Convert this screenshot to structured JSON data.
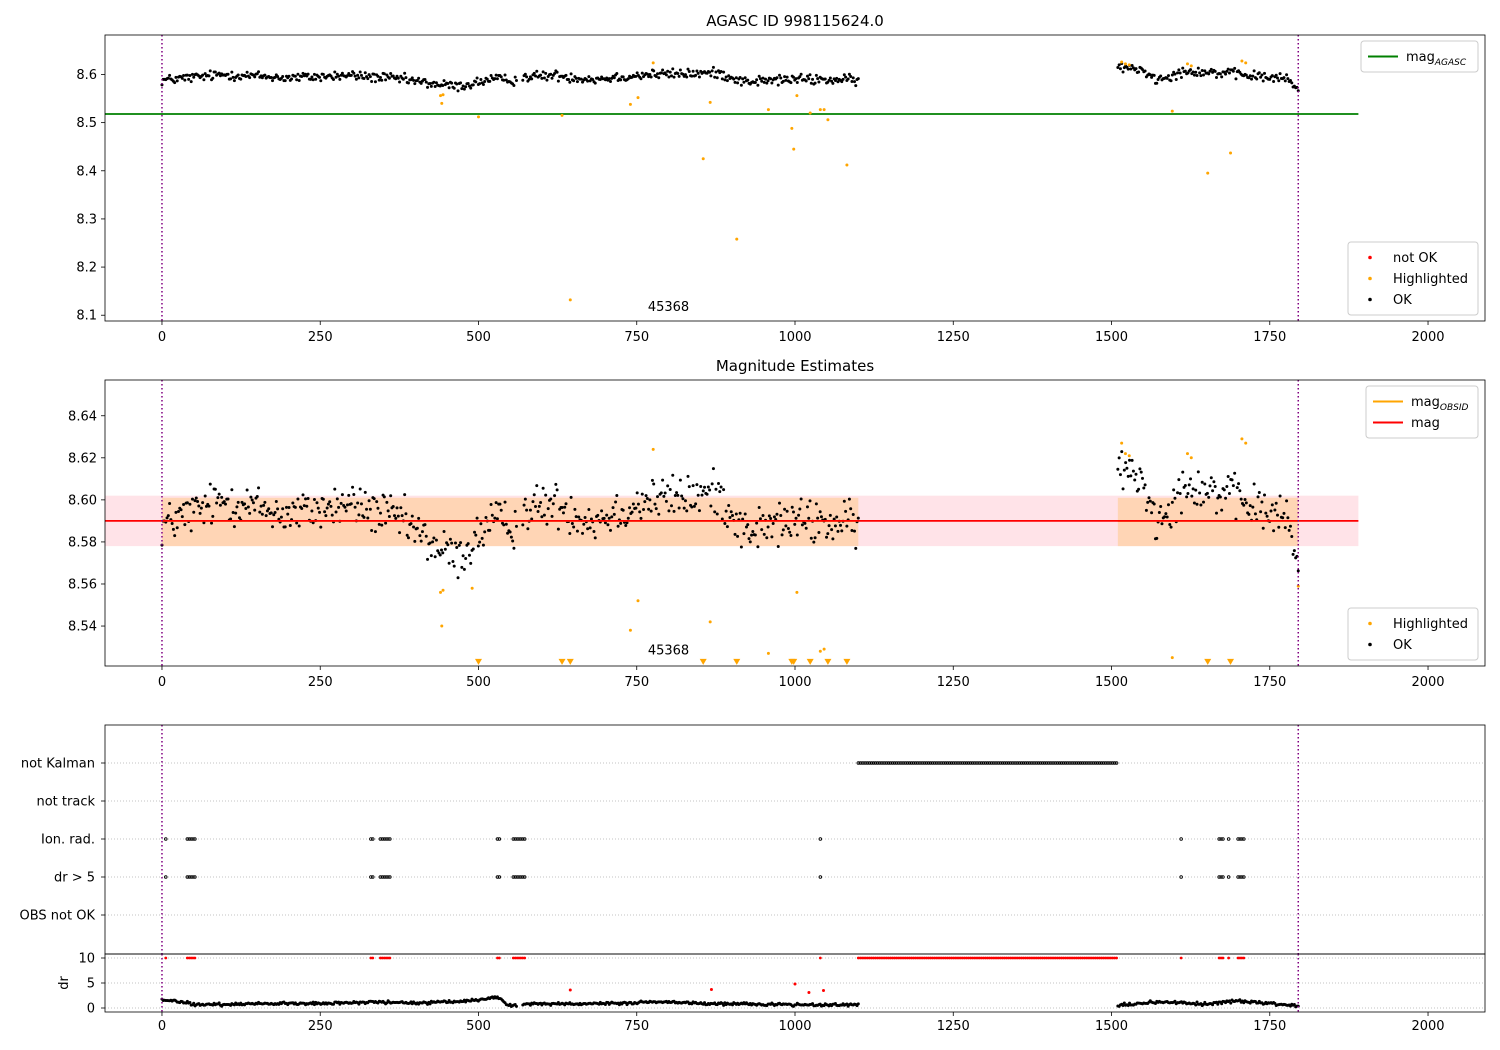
{
  "chart_data": [
    {
      "type": "scatter",
      "title": "AGASC ID 998115624.0",
      "xlabel": "",
      "ylabel": "",
      "xlim": [
        -90,
        2090
      ],
      "ylim": [
        8.088,
        8.682
      ],
      "xticks": [
        0,
        250,
        500,
        750,
        1000,
        1250,
        1500,
        1750,
        2000
      ],
      "yticks": [
        8.1,
        8.2,
        8.3,
        8.4,
        8.5,
        8.6
      ],
      "grid": false,
      "annotation": {
        "text": "45368",
        "x": 895,
        "y": 8.105
      },
      "vlines": [
        0,
        1795
      ],
      "hline": {
        "name": "mag_AGASC",
        "y": 8.518,
        "x_range": [
          -90,
          1890
        ],
        "color": "#008000"
      },
      "legend_top": {
        "placement": "upper right",
        "entries": [
          {
            "label": "mag",
            "sub": "AGASC",
            "color": "#008000",
            "kind": "line"
          }
        ]
      },
      "legend_bottom": {
        "placement": "lower right",
        "entries": [
          {
            "label": "not OK",
            "color": "#ff0000",
            "kind": "dot"
          },
          {
            "label": "Highlighted",
            "color": "#ffa500",
            "kind": "dot"
          },
          {
            "label": "OK",
            "color": "#000000",
            "kind": "dot"
          }
        ]
      },
      "series": [
        {
          "name": "OK",
          "color": "#000000",
          "segments": [
            {
              "x0": 0,
              "x1": 560,
              "n": 280,
              "knots": [
                [
                  0,
                  8.588
                ],
                [
                  100,
                  8.6
                ],
                [
                  200,
                  8.593
                ],
                [
                  300,
                  8.598
                ],
                [
                  380,
                  8.59
                ],
                [
                  430,
                  8.58
                ],
                [
                  470,
                  8.575
                ],
                [
                  520,
                  8.59
                ],
                [
                  560,
                  8.588
                ]
              ],
              "noise": 0.009
            },
            {
              "x0": 570,
              "x1": 1100,
              "n": 265,
              "knots": [
                [
                  570,
                  8.595
                ],
                [
                  620,
                  8.598
                ],
                [
                  680,
                  8.59
                ],
                [
                  770,
                  8.6
                ],
                [
                  880,
                  8.603
                ],
                [
                  920,
                  8.585
                ],
                [
                  1000,
                  8.59
                ],
                [
                  1100,
                  8.588
                ]
              ],
              "noise": 0.009
            },
            {
              "x0": 1510,
              "x1": 1795,
              "n": 140,
              "knots": [
                [
                  1510,
                  8.615
                ],
                [
                  1550,
                  8.61
                ],
                [
                  1570,
                  8.59
                ],
                [
                  1620,
                  8.608
                ],
                [
                  1700,
                  8.6
                ],
                [
                  1780,
                  8.59
                ],
                [
                  1795,
                  8.565
                ]
              ],
              "noise": 0.009
            }
          ]
        },
        {
          "name": "Highlighted",
          "color": "#ffa500",
          "x": [
            440,
            442,
            444,
            500,
            632,
            645,
            740,
            752,
            776,
            855,
            866,
            908,
            958,
            995,
            998,
            1003,
            1024,
            1040,
            1046,
            1052,
            1082,
            1516,
            1522,
            1528,
            1596,
            1620,
            1626,
            1652,
            1688,
            1706,
            1712
          ],
          "y": [
            8.556,
            8.54,
            8.558,
            8.512,
            8.515,
            8.132,
            8.538,
            8.552,
            8.624,
            8.425,
            8.542,
            8.258,
            8.527,
            8.488,
            8.445,
            8.556,
            8.52,
            8.527,
            8.527,
            8.506,
            8.412,
            8.626,
            8.622,
            8.62,
            8.524,
            8.622,
            8.618,
            8.395,
            8.437,
            8.628,
            8.624
          ]
        }
      ]
    },
    {
      "type": "scatter",
      "title": "Magnitude Estimates",
      "xlabel": "",
      "ylabel": "",
      "xlim": [
        -90,
        2090
      ],
      "ylim": [
        8.521,
        8.657
      ],
      "xticks": [
        0,
        250,
        500,
        750,
        1000,
        1250,
        1500,
        1750,
        2000
      ],
      "yticks": [
        8.54,
        8.56,
        8.58,
        8.6,
        8.62,
        8.64
      ],
      "grid": false,
      "annotation": {
        "text": "45368",
        "x": 895,
        "y": 8.5255
      },
      "vlines": [
        0,
        1795
      ],
      "bands": [
        {
          "name": "mag band",
          "y0": 8.578,
          "y1": 8.602,
          "x_range": [
            -90,
            1890
          ],
          "color": "#ffc0cb",
          "opacity": 0.45
        },
        {
          "name": "mag_OBSID band",
          "y0": 8.578,
          "y1": 8.601,
          "x_range": [
            0,
            1100
          ],
          "color": "#ffa500",
          "opacity": 0.22
        },
        {
          "name": "mag_OBSID band",
          "y0": 8.578,
          "y1": 8.601,
          "x_range": [
            1510,
            1795
          ],
          "color": "#ffa500",
          "opacity": 0.22
        }
      ],
      "lines": [
        {
          "name": "mag_OBSID",
          "y": 8.59,
          "x_range": [
            0,
            1100
          ],
          "color": "#ffa500"
        },
        {
          "name": "mag_OBSID",
          "y": 8.59,
          "x_range": [
            1510,
            1795
          ],
          "color": "#ffa500"
        },
        {
          "name": "mag",
          "y": 8.59,
          "x_range": [
            -90,
            1890
          ],
          "color": "#ff0000"
        }
      ],
      "legend_top": {
        "placement": "upper right",
        "entries": [
          {
            "label": "mag",
            "sub": "OBSID",
            "color": "#ffa500",
            "kind": "line"
          },
          {
            "label": "mag",
            "sub": "",
            "color": "#ff0000",
            "kind": "line"
          }
        ]
      },
      "legend_bottom": {
        "placement": "lower right",
        "entries": [
          {
            "label": "Highlighted",
            "color": "#ffa500",
            "kind": "dot"
          },
          {
            "label": "OK",
            "color": "#000000",
            "kind": "dot"
          }
        ]
      },
      "series": [
        {
          "name": "OK",
          "color": "#000000",
          "segments": [
            {
              "x0": 0,
              "x1": 560,
              "n": 280,
              "knots": [
                [
                  0,
                  8.588
                ],
                [
                  100,
                  8.6
                ],
                [
                  200,
                  8.593
                ],
                [
                  300,
                  8.598
                ],
                [
                  380,
                  8.59
                ],
                [
                  430,
                  8.578
                ],
                [
                  470,
                  8.572
                ],
                [
                  520,
                  8.59
                ],
                [
                  560,
                  8.588
                ]
              ],
              "noise": 0.009
            },
            {
              "x0": 570,
              "x1": 1100,
              "n": 265,
              "knots": [
                [
                  570,
                  8.595
                ],
                [
                  620,
                  8.598
                ],
                [
                  680,
                  8.59
                ],
                [
                  770,
                  8.6
                ],
                [
                  880,
                  8.603
                ],
                [
                  920,
                  8.585
                ],
                [
                  1000,
                  8.59
                ],
                [
                  1100,
                  8.588
                ]
              ],
              "noise": 0.009
            },
            {
              "x0": 1510,
              "x1": 1795,
              "n": 140,
              "knots": [
                [
                  1510,
                  8.615
                ],
                [
                  1550,
                  8.61
                ],
                [
                  1570,
                  8.59
                ],
                [
                  1620,
                  8.608
                ],
                [
                  1700,
                  8.6
                ],
                [
                  1780,
                  8.59
                ],
                [
                  1795,
                  8.565
                ]
              ],
              "noise": 0.009
            }
          ]
        },
        {
          "name": "Highlighted",
          "color": "#ffa500",
          "x": [
            440,
            442,
            444,
            490,
            740,
            752,
            776,
            866,
            958,
            1003,
            1040,
            1046,
            1516,
            1522,
            1528,
            1596,
            1620,
            1626,
            1706,
            1712,
            1795
          ],
          "y": [
            8.556,
            8.54,
            8.557,
            8.558,
            8.538,
            8.552,
            8.624,
            8.542,
            8.527,
            8.556,
            8.528,
            8.529,
            8.627,
            8.622,
            8.621,
            8.525,
            8.622,
            8.62,
            8.629,
            8.627,
            8.559
          ]
        },
        {
          "name": "Highlighted (off scale)",
          "color": "#ffa500",
          "marker": "triangle-down",
          "x": [
            500,
            632,
            645,
            855,
            908,
            995,
            998,
            1024,
            1052,
            1082,
            1652,
            1688
          ],
          "y": [
            8.522,
            8.522,
            8.522,
            8.522,
            8.522,
            8.522,
            8.522,
            8.522,
            8.522,
            8.522,
            8.522,
            8.522
          ]
        }
      ]
    },
    {
      "type": "scatter",
      "title": "",
      "xlabel": "",
      "ylabel": "",
      "xlim": [
        -90,
        2090
      ],
      "categories": [
        "not Kalman",
        "not track",
        "Ion. rad.",
        "dr > 5",
        "OBS not OK"
      ],
      "grid": true,
      "vlines": [
        0,
        1795
      ],
      "flags": {
        "not Kalman": [
          [
            1100,
            1510
          ]
        ],
        "not track": [],
        "Ion. rad.": [
          [
            6,
            6
          ],
          [
            40,
            52
          ],
          [
            330,
            334
          ],
          [
            345,
            362
          ],
          [
            530,
            534
          ],
          [
            555,
            575
          ],
          [
            1040,
            1040
          ],
          [
            1610,
            1610
          ],
          [
            1670,
            1676
          ],
          [
            1685,
            1685
          ],
          [
            1700,
            1710
          ]
        ],
        "dr > 5": [
          [
            6,
            6
          ],
          [
            40,
            52
          ],
          [
            330,
            334
          ],
          [
            345,
            362
          ],
          [
            530,
            534
          ],
          [
            555,
            575
          ],
          [
            1040,
            1040
          ],
          [
            1610,
            1610
          ],
          [
            1670,
            1676
          ],
          [
            1685,
            1685
          ],
          [
            1700,
            1710
          ]
        ],
        "OBS not OK": []
      }
    },
    {
      "type": "scatter",
      "title": "",
      "xlabel": "",
      "ylabel": "dr",
      "xlim": [
        -90,
        2090
      ],
      "ylim": [
        -0.8,
        10.8
      ],
      "yticks": [
        0,
        5,
        10
      ],
      "grid": true,
      "vlines": [
        0,
        1795
      ],
      "series": [
        {
          "name": "OK",
          "color": "#000000",
          "segments": [
            {
              "x0": 0,
              "x1": 560,
              "n": 280,
              "knots": [
                [
                  0,
                  1.6
                ],
                [
                  30,
                  1.2
                ],
                [
                  60,
                  0.6
                ],
                [
                  150,
                  0.9
                ],
                [
                  250,
                  0.9
                ],
                [
                  330,
                  1.2
                ],
                [
                  400,
                  1.0
                ],
                [
                  480,
                  1.3
                ],
                [
                  530,
                  2.2
                ],
                [
                  545,
                  0.7
                ],
                [
                  560,
                  0.6
                ]
              ],
              "noise": 0.25
            },
            {
              "x0": 570,
              "x1": 1100,
              "n": 265,
              "knots": [
                [
                  570,
                  0.8
                ],
                [
                  700,
                  0.9
                ],
                [
                  800,
                  1.2
                ],
                [
                  880,
                  0.8
                ],
                [
                  1000,
                  0.7
                ],
                [
                  1100,
                  0.6
                ]
              ],
              "noise": 0.25
            },
            {
              "x0": 1510,
              "x1": 1795,
              "n": 140,
              "knots": [
                [
                  1510,
                  0.6
                ],
                [
                  1580,
                  1.2
                ],
                [
                  1650,
                  0.8
                ],
                [
                  1700,
                  1.4
                ],
                [
                  1750,
                  0.9
                ],
                [
                  1795,
                  0.4
                ]
              ],
              "noise": 0.25
            }
          ]
        },
        {
          "name": "not OK",
          "color": "#ff0000",
          "ranges": [
            [
              6,
              6
            ],
            [
              40,
              52
            ],
            [
              330,
              334
            ],
            [
              345,
              362
            ],
            [
              530,
              534
            ],
            [
              555,
              575
            ],
            [
              1040,
              1040
            ],
            [
              1100,
              1510
            ],
            [
              1610,
              1610
            ],
            [
              1670,
              1676
            ],
            [
              1685,
              1685
            ],
            [
              1700,
              1710
            ]
          ],
          "y": 10
        },
        {
          "name": "not OK (scattered)",
          "color": "#ff0000",
          "x": [
            645,
            868,
            1000,
            1022,
            1045
          ],
          "y": [
            3.6,
            3.7,
            4.8,
            3.1,
            3.5
          ]
        }
      ]
    }
  ]
}
